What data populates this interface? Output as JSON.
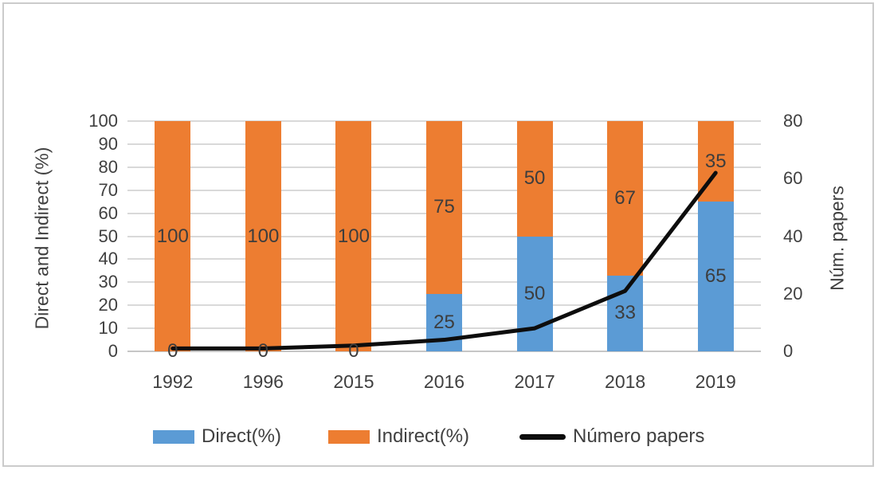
{
  "chart_data": {
    "type": "combo-stacked-bar-line",
    "categories": [
      "1992",
      "1996",
      "2015",
      "2016",
      "2017",
      "2018",
      "2019"
    ],
    "bar_series": [
      {
        "name": "Direct(%)",
        "color": "#5b9bd5",
        "values": [
          0,
          0,
          0,
          25,
          50,
          33,
          65
        ],
        "labels": [
          "0",
          "0",
          "0",
          "25",
          "50",
          "33",
          "65"
        ]
      },
      {
        "name": "Indirect(%)",
        "color": "#ed7d31",
        "values": [
          100,
          100,
          100,
          75,
          50,
          67,
          35
        ],
        "labels": [
          "100",
          "100",
          "100",
          "75",
          "50",
          "67",
          "35"
        ]
      }
    ],
    "line_series": {
      "name": "Número papers",
      "color": "#0d0d0d",
      "values": [
        1,
        1,
        2,
        4,
        8,
        21,
        62
      ]
    },
    "left_axis": {
      "title": "Direct and Indirect (%)",
      "min": 0,
      "max": 100,
      "tick_step": 10,
      "ticks": [
        0,
        10,
        20,
        30,
        40,
        50,
        60,
        70,
        80,
        90,
        100
      ]
    },
    "right_axis": {
      "title": "Núm. papers",
      "min": 0,
      "max": 80,
      "tick_step": 20,
      "ticks": [
        0,
        20,
        40,
        60,
        80
      ]
    },
    "grid": true,
    "legend_position": "bottom",
    "bar_stacked": true
  },
  "legend": {
    "items": [
      {
        "label": "Direct(%)",
        "swatch": "rect",
        "color": "#5b9bd5"
      },
      {
        "label": "Indirect(%)",
        "swatch": "rect",
        "color": "#ed7d31"
      },
      {
        "label": "Número papers",
        "swatch": "line",
        "color": "#0d0d0d"
      }
    ]
  },
  "colors": {
    "direct_blue": "#5b9bd5",
    "indirect_orange": "#ed7d31",
    "line_black": "#0d0d0d",
    "gridline": "#d9d9d9",
    "text": "#404040",
    "frame_border": "#cbcbcb"
  }
}
